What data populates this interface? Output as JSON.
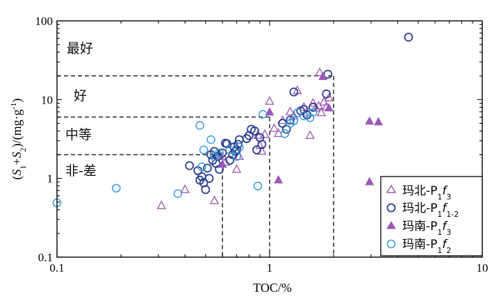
{
  "chart_data": {
    "type": "scatter",
    "title": "",
    "xlabel": "TOC/%",
    "ylabel": "(S1+S2)/(mg·g-1)",
    "ylabel_parts": {
      "open": "(",
      "s": "S",
      "sub1": "1",
      "plus": "+",
      "sub2": "2",
      "close": ")/(mg·g",
      "sup": "-1",
      "end": ")"
    },
    "x_scale": "log",
    "y_scale": "log",
    "xlim": [
      0.1,
      10
    ],
    "ylim": [
      0.1,
      100
    ],
    "x_ticks": [
      "0.1",
      "1",
      "10"
    ],
    "y_ticks": [
      "0.1",
      "1",
      "10",
      "100"
    ],
    "grid": false,
    "legend_position": "bottom-right",
    "regions": [
      {
        "label": "最好"
      },
      {
        "label": "好"
      },
      {
        "label": "中等"
      },
      {
        "label": "非-差"
      }
    ],
    "thresholds": {
      "boxes": [
        {
          "toc": 0.6,
          "s": 2
        },
        {
          "toc": 1.0,
          "s": 6
        },
        {
          "toc": 2.0,
          "s": 20
        }
      ]
    },
    "series": [
      {
        "name": "玛北-P1f3",
        "legend": {
          "main": "玛北-P",
          "sub": "1",
          "f": "f",
          "f_sub": "3"
        },
        "marker": "triangle-open",
        "color": "#a05fb0",
        "points": [
          [
            0.31,
            0.45
          ],
          [
            0.4,
            0.72
          ],
          [
            0.55,
            0.52
          ],
          [
            0.58,
            2.0
          ],
          [
            0.6,
            1.9
          ],
          [
            0.62,
            1.6
          ],
          [
            0.7,
            1.3
          ],
          [
            0.72,
            1.9
          ],
          [
            0.88,
            3.5
          ],
          [
            0.9,
            2.6
          ],
          [
            0.92,
            2.2
          ],
          [
            0.95,
            3.6
          ],
          [
            1.0,
            9.5
          ],
          [
            1.05,
            4.3
          ],
          [
            1.1,
            3.7
          ],
          [
            1.15,
            5.4
          ],
          [
            1.25,
            7.0
          ],
          [
            1.3,
            6.2
          ],
          [
            1.35,
            13.0
          ],
          [
            1.45,
            8.0
          ],
          [
            1.5,
            6.8
          ],
          [
            1.55,
            3.5
          ],
          [
            1.6,
            9.0
          ],
          [
            1.65,
            7.8
          ],
          [
            1.7,
            8.3
          ],
          [
            1.72,
            22.0
          ],
          [
            1.75,
            6.8
          ],
          [
            1.8,
            9.3
          ],
          [
            1.85,
            8.1
          ],
          [
            1.9,
            10.5
          ]
        ]
      },
      {
        "name": "玛北-P1f1-2",
        "legend": {
          "main": "玛北-P",
          "sub": "1",
          "f": "f",
          "f_sub": "1-2"
        },
        "marker": "circle-open",
        "color": "#2c3e8f",
        "points": [
          [
            0.42,
            1.45
          ],
          [
            0.46,
            1.25
          ],
          [
            0.47,
            0.95
          ],
          [
            0.48,
            1.05
          ],
          [
            0.49,
            0.88
          ],
          [
            0.5,
            0.72
          ],
          [
            0.51,
            1.35
          ],
          [
            0.52,
            1.0
          ],
          [
            0.53,
            2.0
          ],
          [
            0.54,
            1.7
          ],
          [
            0.55,
            2.2
          ],
          [
            0.56,
            1.55
          ],
          [
            0.57,
            1.9
          ],
          [
            0.58,
            1.3
          ],
          [
            0.6,
            2.1
          ],
          [
            0.62,
            2.8
          ],
          [
            0.63,
            2.75
          ],
          [
            0.65,
            1.7
          ],
          [
            0.67,
            2.0
          ],
          [
            0.68,
            2.5
          ],
          [
            0.69,
            2.2
          ],
          [
            0.7,
            2.3
          ],
          [
            0.71,
            2.7
          ],
          [
            0.72,
            3.1
          ],
          [
            0.78,
            3.2
          ],
          [
            0.8,
            3.5
          ],
          [
            0.82,
            4.2
          ],
          [
            0.85,
            4.0
          ],
          [
            0.87,
            2.3
          ],
          [
            0.9,
            3.3
          ],
          [
            0.92,
            2.7
          ],
          [
            1.15,
            5.0
          ],
          [
            1.2,
            4.2
          ],
          [
            1.25,
            5.5
          ],
          [
            1.3,
            12.5
          ],
          [
            1.4,
            7.2
          ],
          [
            1.45,
            7.5
          ],
          [
            1.5,
            6.4
          ],
          [
            1.6,
            8.0
          ],
          [
            1.85,
            11.8
          ],
          [
            1.88,
            21.0
          ],
          [
            4.5,
            62.0
          ]
        ]
      },
      {
        "name": "玛南-P1f3",
        "legend": {
          "main": "玛南-P",
          "sub": "1",
          "f": "f",
          "f_sub": "3"
        },
        "marker": "triangle-filled",
        "color": "#9b59b6",
        "points": [
          [
            0.6,
            1.5
          ],
          [
            1.0,
            6.9
          ],
          [
            1.1,
            0.95
          ],
          [
            1.78,
            19.5
          ],
          [
            1.9,
            7.8
          ],
          [
            2.95,
            5.3
          ],
          [
            3.25,
            5.2
          ],
          [
            2.95,
            0.9
          ]
        ]
      },
      {
        "name": "玛南-P1f2",
        "legend": {
          "main": "玛南-P",
          "sub": "1",
          "f": "f",
          "f_sub": "2"
        },
        "marker": "circle-open",
        "color": "#3a9ad9",
        "points": [
          [
            0.1,
            0.49
          ],
          [
            0.19,
            0.75
          ],
          [
            0.37,
            0.64
          ],
          [
            0.47,
            4.7
          ],
          [
            0.48,
            1.4
          ],
          [
            0.49,
            2.3
          ],
          [
            0.53,
            3.1
          ],
          [
            0.55,
            1.9
          ],
          [
            0.58,
            2.1
          ],
          [
            0.65,
            2.3
          ],
          [
            0.7,
            1.9
          ],
          [
            0.72,
            2.5
          ],
          [
            0.88,
            0.8
          ],
          [
            0.93,
            6.5
          ],
          [
            1.18,
            3.7
          ],
          [
            1.25,
            5.0
          ],
          [
            1.3,
            5.4
          ],
          [
            1.35,
            6.8
          ],
          [
            1.45,
            6.2
          ],
          [
            1.55,
            5.9
          ],
          [
            1.6,
            6.9
          ]
        ]
      }
    ]
  }
}
